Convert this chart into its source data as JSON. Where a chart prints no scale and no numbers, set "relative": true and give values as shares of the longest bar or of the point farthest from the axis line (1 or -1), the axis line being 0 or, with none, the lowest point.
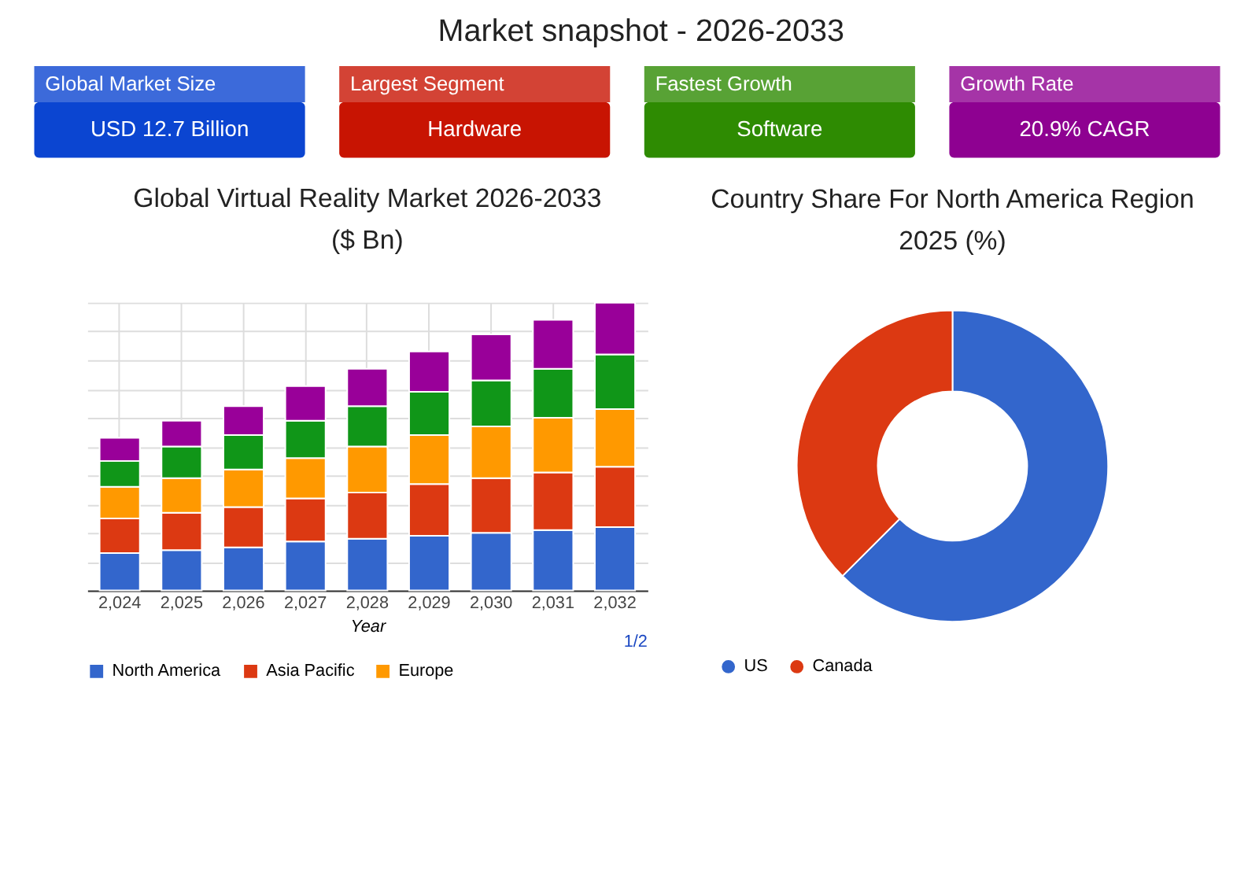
{
  "chart_data": [
    {
      "type": "other",
      "title": "Market snapshot - 2026-2033",
      "annotations": [
        "Global Market Size",
        "USD 12.7 Billion",
        "Largest Segment",
        "Hardware",
        "Fastest Growth",
        "Software",
        "Growth Rate",
        "20.9% CAGR"
      ],
      "colors": [
        "#0b45d1",
        "#c81402",
        "#2e8b02",
        "#8e0191"
      ]
    },
    {
      "type": "bar",
      "stacked": true,
      "relative": true,
      "title": "Global Virtual Reality Market 2026-2033",
      "subtitle": "($ Bn)",
      "xlabel": "Year",
      "categories": [
        "2,024",
        "2,025",
        "2,026",
        "2,027",
        "2,028",
        "2,029",
        "2,030",
        "2,031",
        "2,032"
      ],
      "series": [
        {
          "name": "North America",
          "color": "#3366cc",
          "values": [
            0.13,
            0.14,
            0.15,
            0.17,
            0.18,
            0.19,
            0.2,
            0.21,
            0.22
          ]
        },
        {
          "name": "Asia Pacific",
          "color": "#dc3912",
          "values": [
            0.12,
            0.13,
            0.14,
            0.15,
            0.16,
            0.18,
            0.19,
            0.2,
            0.21
          ]
        },
        {
          "name": "Europe",
          "color": "#ff9900",
          "values": [
            0.11,
            0.12,
            0.13,
            0.14,
            0.16,
            0.17,
            0.18,
            0.19,
            0.2
          ]
        },
        {
          "color": "#109618",
          "values": [
            0.09,
            0.11,
            0.12,
            0.13,
            0.14,
            0.15,
            0.16,
            0.17,
            0.19
          ]
        },
        {
          "color": "#990099",
          "values": [
            0.08,
            0.09,
            0.1,
            0.12,
            0.13,
            0.14,
            0.16,
            0.17,
            0.18
          ]
        }
      ],
      "grid": true,
      "legend": "bottom",
      "annotations": [
        "1/2"
      ]
    },
    {
      "type": "donut",
      "title": "Country Share For North America Region",
      "subtitle": "2025 (%)",
      "categories": [
        "US",
        "Canada"
      ],
      "values": [
        62.5,
        37.5
      ],
      "colors": [
        "#3366cc",
        "#dc3912"
      ],
      "legend": "bottom"
    }
  ]
}
